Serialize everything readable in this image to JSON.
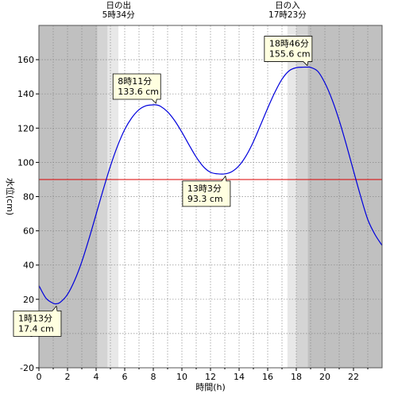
{
  "chart_data": {
    "type": "line",
    "xlabel": "時間(h)",
    "ylabel": "水位(cm)",
    "xlim": [
      0,
      24
    ],
    "ylim": [
      -20,
      180
    ],
    "x_ticks": [
      0,
      2,
      4,
      6,
      8,
      10,
      12,
      14,
      16,
      18,
      20,
      22
    ],
    "y_ticks": [
      -20,
      0,
      20,
      40,
      60,
      80,
      100,
      120,
      140,
      160
    ],
    "grid": true,
    "colors": {
      "line": "#0000dd",
      "reference_line": "#dd0000",
      "night": "#c0c0c0",
      "twilight_dark": "#d4d4d4",
      "twilight_light": "#e8e8e8",
      "day": "#ffffff",
      "callout_bg": "#ffffe0"
    },
    "reference_line": {
      "y": 90
    },
    "sun": {
      "sunrise": {
        "label": "日の出",
        "time": "5時34分",
        "hour": 5.567
      },
      "sunset": {
        "label": "日の入",
        "time": "17時23分",
        "hour": 17.383
      }
    },
    "shading": {
      "night_until": 4.1,
      "dawn_mid": 4.8,
      "dawn_light": 5.567,
      "dusk_light": 17.383,
      "dusk_mid": 18.0,
      "night_from": 18.8
    },
    "series": [
      {
        "x": [
          0,
          0.5,
          1.0,
          1.22,
          1.5,
          2.0,
          2.5,
          3.0,
          3.5,
          4.0,
          4.5,
          5.0,
          5.5,
          6.0,
          6.5,
          7.0,
          7.5,
          8.0,
          8.18,
          8.5,
          9.0,
          9.5,
          10.0,
          10.5,
          11.0,
          11.5,
          12.0,
          12.5,
          13.05,
          13.5,
          14.0,
          14.5,
          15.0,
          15.5,
          16.0,
          16.5,
          17.0,
          17.5,
          18.0,
          18.5,
          18.77,
          19.0,
          19.5,
          20.0,
          20.5,
          21.0,
          21.5,
          22.0,
          22.5,
          23.0,
          23.5,
          24.0
        ],
        "values": [
          28.0,
          20.6,
          17.7,
          17.4,
          18.3,
          22.9,
          31.1,
          42.0,
          55.3,
          69.7,
          84.2,
          97.8,
          109.6,
          119.2,
          126.1,
          130.8,
          133.1,
          133.6,
          133.6,
          132.8,
          129.5,
          124.3,
          117.6,
          110.2,
          103.1,
          97.5,
          94.2,
          93.3,
          93.3,
          94.6,
          98.1,
          104.0,
          112.1,
          121.8,
          131.7,
          140.9,
          148.6,
          153.5,
          155.3,
          155.6,
          155.6,
          155.5,
          153.2,
          146.4,
          136.7,
          124.5,
          110.3,
          95.1,
          80.2,
          66.6,
          57.9,
          51.5
        ]
      }
    ],
    "annotations": [
      {
        "time": "1時13分",
        "value": "17.4 cm",
        "x": 1.22,
        "y": 17.4,
        "box": "below-left"
      },
      {
        "time": "8時11分",
        "value": "133.6 cm",
        "x": 8.18,
        "y": 133.6,
        "box": "above-left"
      },
      {
        "time": "13時3分",
        "value": "93.3 cm",
        "x": 13.05,
        "y": 93.3,
        "box": "below-left"
      },
      {
        "time": "18時46分",
        "value": "155.6 cm",
        "x": 18.77,
        "y": 155.6,
        "box": "above-left"
      }
    ]
  }
}
